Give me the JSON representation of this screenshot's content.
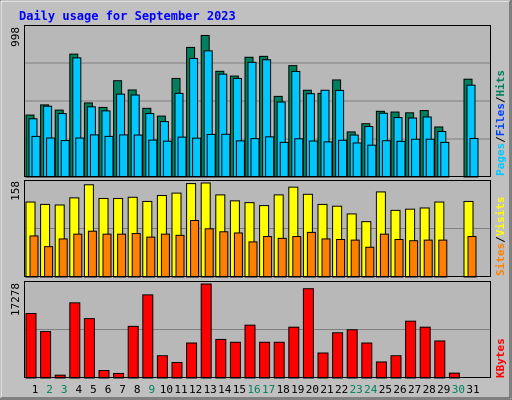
{
  "title": "Daily usage for September 2023",
  "colors": {
    "background": "#c0c0c0",
    "title": "#0000ff",
    "plot_bg": "#b8b8b8",
    "hits": "#00805c",
    "files": "#00c8ff",
    "pages": "#0040ff",
    "visits": "#ffff00",
    "sites": "#ff8000",
    "kbytes": "#ff0000",
    "weekend_day": "#00805c"
  },
  "legend": {
    "pages": "Pages",
    "files": "Files",
    "hits": "Hits",
    "sep": "/",
    "sites": "Sites",
    "visits": "Visits",
    "kbytes": "KBytes"
  },
  "chart_data": [
    {
      "type": "bar",
      "title": "Daily usage for September 2023",
      "panel": "hits-files-pages",
      "ymax_label": "998",
      "ylim": [
        0,
        998
      ],
      "grid": true,
      "categories": [
        "1",
        "2",
        "3",
        "4",
        "5",
        "6",
        "7",
        "8",
        "9",
        "10",
        "11",
        "12",
        "13",
        "14",
        "15",
        "16",
        "17",
        "18",
        "19",
        "20",
        "21",
        "22",
        "23",
        "24",
        "25",
        "26",
        "27",
        "28",
        "29",
        "30",
        "31"
      ],
      "weekend_days": [
        "2",
        "3",
        "9",
        "16",
        "17",
        "23",
        "24",
        "30"
      ],
      "series": [
        {
          "name": "Hits",
          "values": [
            415,
            483,
            448,
            823,
            496,
            466,
            645,
            583,
            460,
            408,
            660,
            868,
            948,
            708,
            676,
            802,
            808,
            540,
            746,
            581,
            560,
            650,
            302,
            357,
            440,
            435,
            430,
            445,
            335,
            0,
            655
          ]
        },
        {
          "name": "Files",
          "values": [
            390,
            474,
            425,
            798,
            470,
            443,
            555,
            549,
            425,
            371,
            560,
            794,
            845,
            689,
            660,
            768,
            785,
            502,
            707,
            558,
            581,
            580,
            281,
            338,
            427,
            398,
            395,
            402,
            305,
            0,
            615
          ]
        },
        {
          "name": "Pages",
          "values": [
            272,
            261,
            244,
            261,
            282,
            272,
            282,
            281,
            247,
            240,
            267,
            260,
            285,
            286,
            242,
            257,
            269,
            232,
            256,
            241,
            235,
            246,
            228,
            213,
            243,
            239,
            253,
            253,
            232,
            0,
            258
          ]
        }
      ]
    },
    {
      "type": "bar",
      "panel": "visits-sites",
      "ymax_label": "158",
      "ylim": [
        0,
        158
      ],
      "grid": true,
      "categories": [
        "1",
        "2",
        "3",
        "4",
        "5",
        "6",
        "7",
        "8",
        "9",
        "10",
        "11",
        "12",
        "13",
        "14",
        "15",
        "16",
        "17",
        "18",
        "19",
        "20",
        "21",
        "22",
        "23",
        "24",
        "25",
        "26",
        "27",
        "28",
        "29",
        "30",
        "31"
      ],
      "series": [
        {
          "name": "Visits",
          "values": [
            126,
            122,
            121,
            133,
            155,
            132,
            132,
            134,
            127,
            137,
            141,
            157,
            158,
            138,
            128,
            125,
            120,
            138,
            151,
            139,
            122,
            119,
            106,
            93,
            143,
            112,
            114,
            116,
            126,
            0,
            127
          ]
        },
        {
          "name": "Sites",
          "values": [
            69,
            51,
            64,
            72,
            77,
            72,
            72,
            73,
            67,
            72,
            70,
            95,
            81,
            76,
            74,
            59,
            68,
            65,
            68,
            75,
            64,
            63,
            62,
            50,
            72,
            63,
            61,
            62,
            62,
            0,
            68
          ]
        }
      ]
    },
    {
      "type": "bar",
      "panel": "kbytes",
      "ymax_label": "17278",
      "ylim": [
        0,
        17278
      ],
      "grid": true,
      "categories": [
        "1",
        "2",
        "3",
        "4",
        "5",
        "6",
        "7",
        "8",
        "9",
        "10",
        "11",
        "12",
        "13",
        "14",
        "15",
        "16",
        "17",
        "18",
        "19",
        "20",
        "21",
        "22",
        "23",
        "24",
        "25",
        "26",
        "27",
        "28",
        "29",
        "30",
        "31"
      ],
      "series": [
        {
          "name": "KBytes",
          "values": [
            11854,
            8533,
            521,
            13816,
            10914,
            1375,
            836,
            9494,
            15283,
            4096,
            2853,
            6429,
            17278,
            7087,
            6567,
            9711,
            6567,
            6567,
            9338,
            16413,
            4594,
            8313,
            8865,
            6429,
            2949,
            4096,
            10442,
            9338,
            6808,
            894,
            0
          ]
        }
      ]
    }
  ]
}
